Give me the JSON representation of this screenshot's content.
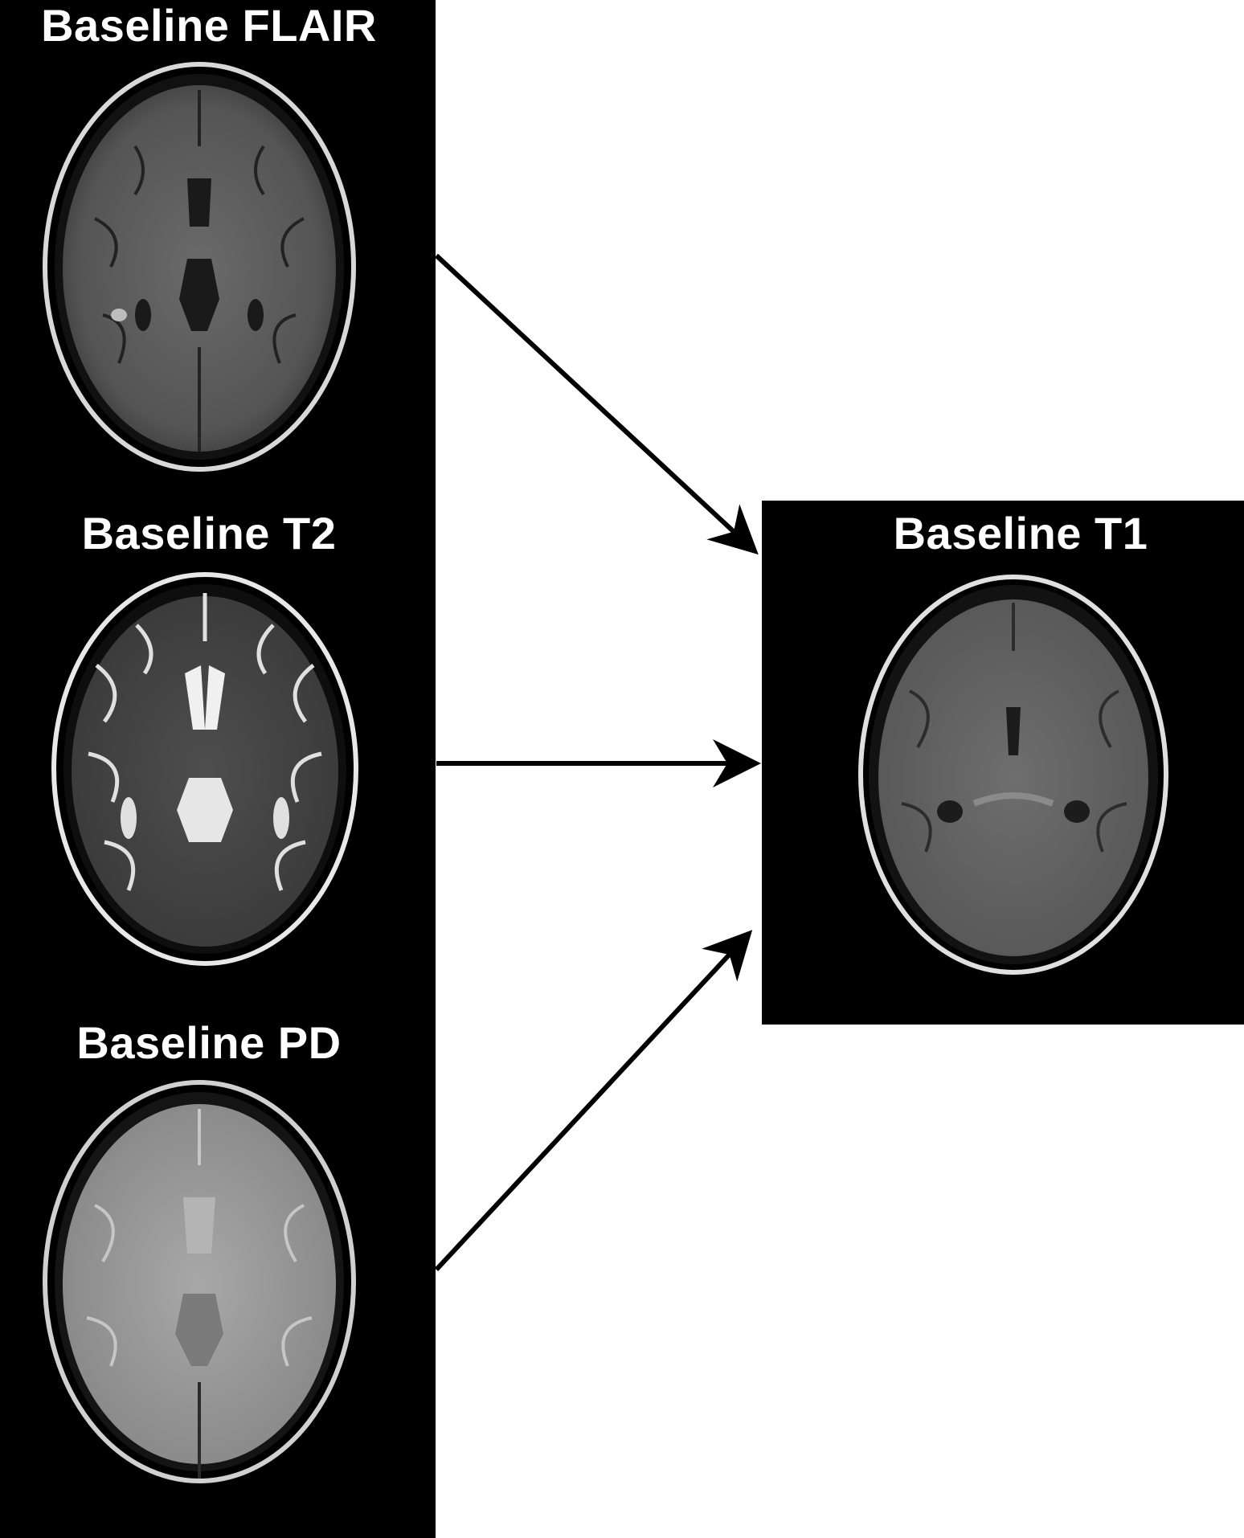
{
  "panels": {
    "flair": {
      "label": "Baseline FLAIR"
    },
    "t2": {
      "label": "Baseline T2"
    },
    "pd": {
      "label": "Baseline PD"
    },
    "t1": {
      "label": "Baseline T1"
    }
  },
  "colors": {
    "background": "#ffffff",
    "panel": "#000000",
    "text": "#ffffff",
    "arrow": "#000000",
    "flair_tissue": "#5a5a5a",
    "t2_tissue": "#4a4a4a",
    "pd_tissue": "#9a9a9a",
    "t1_tissue": "#666666"
  }
}
